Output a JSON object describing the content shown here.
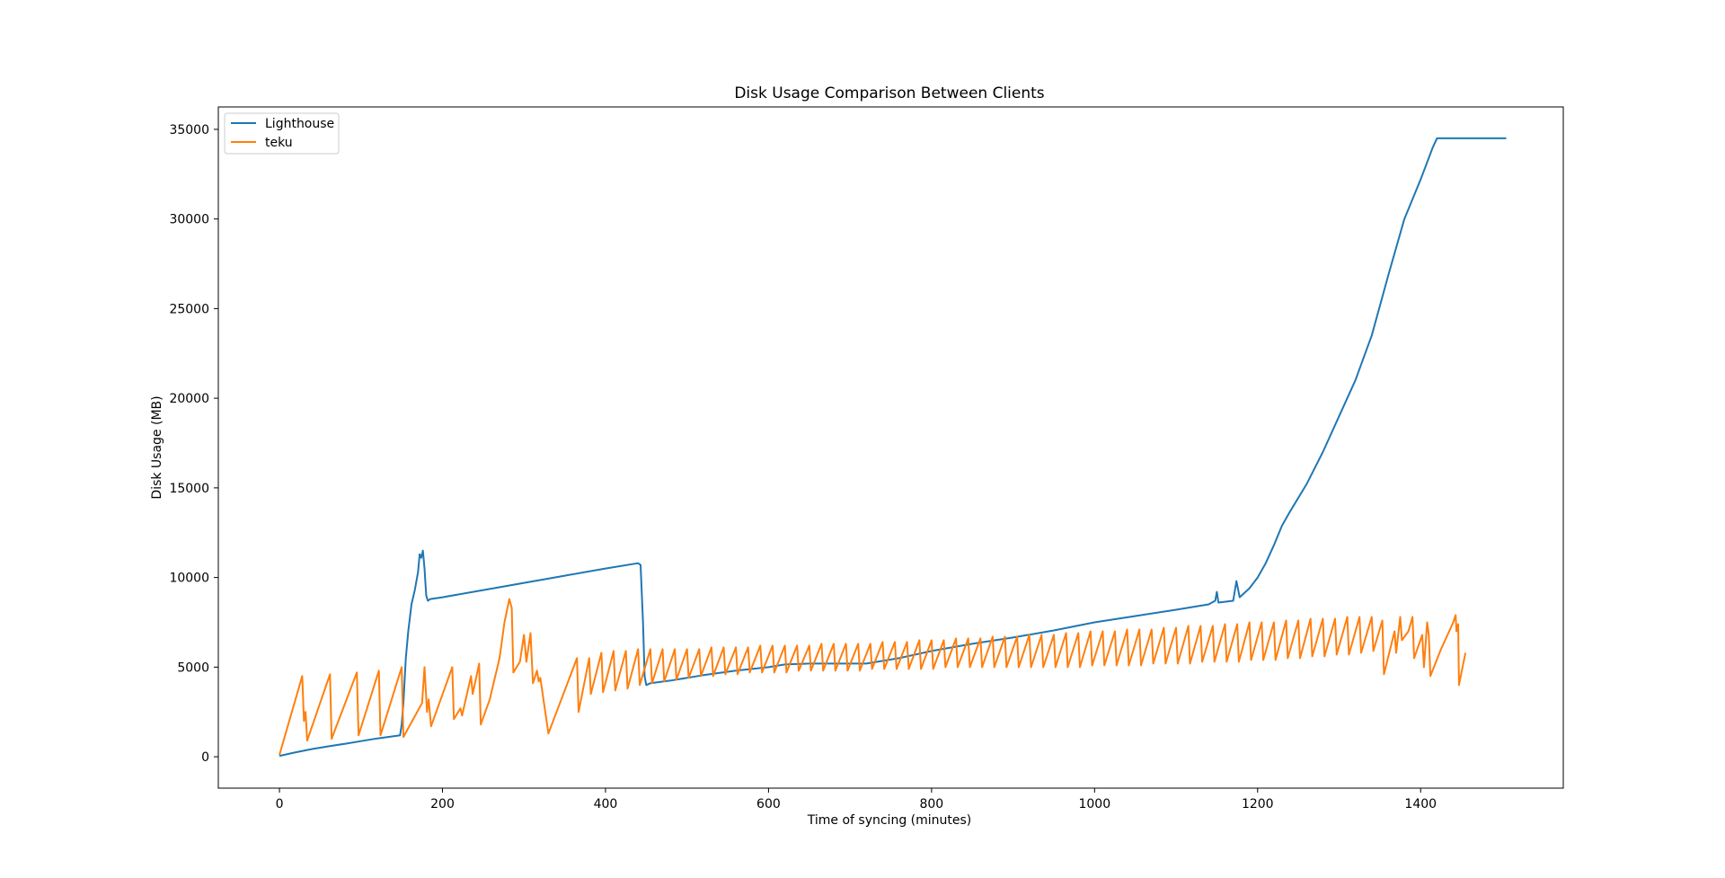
{
  "chart_data": {
    "type": "line",
    "title": "Disk Usage Comparison Between Clients",
    "xlabel": "Time of syncing (minutes)",
    "ylabel": "Disk Usage (MB)",
    "xlim": [
      -75,
      1575
    ],
    "ylim": [
      -1750,
      36250
    ],
    "x_ticks": [
      0,
      200,
      400,
      600,
      800,
      1000,
      1200,
      1400
    ],
    "y_ticks": [
      0,
      5000,
      10000,
      15000,
      20000,
      25000,
      30000,
      35000
    ],
    "grid": false,
    "legend_position": "top-left",
    "series": [
      {
        "name": "Lighthouse",
        "color": "#1f77b4",
        "points": [
          [
            0,
            50
          ],
          [
            20,
            250
          ],
          [
            40,
            430
          ],
          [
            60,
            580
          ],
          [
            80,
            720
          ],
          [
            100,
            870
          ],
          [
            120,
            1020
          ],
          [
            140,
            1150
          ],
          [
            148,
            1200
          ],
          [
            150,
            1800
          ],
          [
            152,
            3000
          ],
          [
            155,
            5500
          ],
          [
            158,
            7000
          ],
          [
            162,
            8500
          ],
          [
            166,
            9300
          ],
          [
            170,
            10300
          ],
          [
            172,
            11300
          ],
          [
            174,
            11100
          ],
          [
            176,
            11500
          ],
          [
            178,
            10500
          ],
          [
            180,
            9000
          ],
          [
            182,
            8700
          ],
          [
            185,
            8800
          ],
          [
            200,
            8900
          ],
          [
            250,
            9300
          ],
          [
            300,
            9700
          ],
          [
            350,
            10100
          ],
          [
            400,
            10500
          ],
          [
            440,
            10800
          ],
          [
            443,
            10700
          ],
          [
            446,
            7500
          ],
          [
            448,
            4500
          ],
          [
            450,
            4000
          ],
          [
            455,
            4100
          ],
          [
            480,
            4250
          ],
          [
            520,
            4550
          ],
          [
            560,
            4800
          ],
          [
            600,
            5000
          ],
          [
            620,
            5150
          ],
          [
            650,
            5200
          ],
          [
            700,
            5200
          ],
          [
            720,
            5200
          ],
          [
            760,
            5500
          ],
          [
            800,
            5900
          ],
          [
            850,
            6300
          ],
          [
            900,
            6650
          ],
          [
            950,
            7050
          ],
          [
            1000,
            7500
          ],
          [
            1050,
            7850
          ],
          [
            1100,
            8200
          ],
          [
            1140,
            8500
          ],
          [
            1148,
            8700
          ],
          [
            1150,
            9200
          ],
          [
            1152,
            8600
          ],
          [
            1170,
            8700
          ],
          [
            1174,
            9800
          ],
          [
            1178,
            8900
          ],
          [
            1190,
            9400
          ],
          [
            1200,
            10000
          ],
          [
            1210,
            10800
          ],
          [
            1220,
            11800
          ],
          [
            1230,
            12900
          ],
          [
            1240,
            13700
          ],
          [
            1260,
            15200
          ],
          [
            1280,
            17000
          ],
          [
            1300,
            19000
          ],
          [
            1320,
            21000
          ],
          [
            1340,
            23500
          ],
          [
            1360,
            26800
          ],
          [
            1380,
            30000
          ],
          [
            1400,
            32200
          ],
          [
            1415,
            34000
          ],
          [
            1420,
            34500
          ],
          [
            1440,
            34500
          ],
          [
            1470,
            34500
          ],
          [
            1505,
            34500
          ]
        ]
      },
      {
        "name": "teku",
        "color": "#ff7f0e",
        "points": [
          [
            0,
            100
          ],
          [
            28,
            4500
          ],
          [
            30,
            2000
          ],
          [
            32,
            2500
          ],
          [
            34,
            900
          ],
          [
            62,
            4600
          ],
          [
            64,
            1000
          ],
          [
            95,
            4700
          ],
          [
            97,
            1200
          ],
          [
            122,
            4800
          ],
          [
            124,
            1200
          ],
          [
            150,
            5000
          ],
          [
            152,
            1100
          ],
          [
            175,
            3000
          ],
          [
            178,
            5000
          ],
          [
            181,
            2500
          ],
          [
            183,
            3200
          ],
          [
            186,
            1700
          ],
          [
            212,
            5000
          ],
          [
            214,
            2100
          ],
          [
            222,
            2700
          ],
          [
            224,
            2300
          ],
          [
            235,
            4500
          ],
          [
            237,
            3500
          ],
          [
            245,
            5200
          ],
          [
            247,
            1800
          ],
          [
            258,
            3200
          ],
          [
            270,
            5500
          ],
          [
            276,
            7500
          ],
          [
            282,
            8800
          ],
          [
            285,
            8300
          ],
          [
            287,
            4700
          ],
          [
            295,
            5300
          ],
          [
            300,
            6800
          ],
          [
            303,
            5300
          ],
          [
            308,
            6900
          ],
          [
            311,
            4100
          ],
          [
            316,
            4800
          ],
          [
            318,
            4200
          ],
          [
            320,
            4400
          ],
          [
            330,
            1300
          ],
          [
            365,
            5500
          ],
          [
            367,
            2500
          ],
          [
            380,
            5500
          ],
          [
            382,
            3500
          ],
          [
            395,
            5800
          ],
          [
            397,
            3600
          ],
          [
            410,
            5900
          ],
          [
            412,
            3700
          ],
          [
            425,
            5900
          ],
          [
            427,
            3800
          ],
          [
            440,
            6000
          ],
          [
            442,
            4000
          ],
          [
            455,
            6000
          ],
          [
            457,
            4100
          ],
          [
            470,
            6000
          ],
          [
            472,
            4200
          ],
          [
            485,
            6000
          ],
          [
            487,
            4300
          ],
          [
            500,
            6000
          ],
          [
            502,
            4400
          ],
          [
            515,
            6000
          ],
          [
            517,
            4500
          ],
          [
            530,
            6100
          ],
          [
            532,
            4500
          ],
          [
            545,
            6100
          ],
          [
            547,
            4600
          ],
          [
            560,
            6100
          ],
          [
            562,
            4600
          ],
          [
            575,
            6100
          ],
          [
            577,
            4700
          ],
          [
            590,
            6200
          ],
          [
            592,
            4700
          ],
          [
            605,
            6200
          ],
          [
            607,
            4700
          ],
          [
            620,
            6200
          ],
          [
            622,
            4700
          ],
          [
            635,
            6200
          ],
          [
            637,
            4800
          ],
          [
            650,
            6200
          ],
          [
            652,
            4800
          ],
          [
            665,
            6300
          ],
          [
            667,
            4800
          ],
          [
            680,
            6300
          ],
          [
            682,
            4800
          ],
          [
            695,
            6300
          ],
          [
            697,
            4800
          ],
          [
            710,
            6300
          ],
          [
            712,
            4800
          ],
          [
            725,
            6300
          ],
          [
            727,
            4900
          ],
          [
            740,
            6400
          ],
          [
            742,
            4900
          ],
          [
            755,
            6400
          ],
          [
            757,
            4900
          ],
          [
            770,
            6400
          ],
          [
            772,
            4900
          ],
          [
            785,
            6500
          ],
          [
            787,
            4900
          ],
          [
            800,
            6500
          ],
          [
            802,
            4900
          ],
          [
            815,
            6500
          ],
          [
            817,
            5000
          ],
          [
            830,
            6600
          ],
          [
            832,
            5000
          ],
          [
            845,
            6600
          ],
          [
            847,
            5000
          ],
          [
            860,
            6600
          ],
          [
            862,
            5000
          ],
          [
            875,
            6700
          ],
          [
            877,
            5000
          ],
          [
            890,
            6700
          ],
          [
            892,
            5000
          ],
          [
            905,
            6700
          ],
          [
            907,
            5000
          ],
          [
            920,
            6800
          ],
          [
            922,
            5000
          ],
          [
            935,
            6800
          ],
          [
            937,
            5000
          ],
          [
            950,
            6800
          ],
          [
            952,
            5000
          ],
          [
            965,
            6900
          ],
          [
            967,
            5000
          ],
          [
            980,
            6900
          ],
          [
            982,
            5000
          ],
          [
            995,
            7000
          ],
          [
            997,
            5100
          ],
          [
            1010,
            7000
          ],
          [
            1012,
            5100
          ],
          [
            1025,
            7000
          ],
          [
            1027,
            5100
          ],
          [
            1040,
            7100
          ],
          [
            1042,
            5100
          ],
          [
            1055,
            7100
          ],
          [
            1057,
            5100
          ],
          [
            1070,
            7100
          ],
          [
            1072,
            5200
          ],
          [
            1085,
            7200
          ],
          [
            1087,
            5200
          ],
          [
            1100,
            7200
          ],
          [
            1102,
            5200
          ],
          [
            1115,
            7300
          ],
          [
            1117,
            5200
          ],
          [
            1130,
            7300
          ],
          [
            1132,
            5300
          ],
          [
            1145,
            7300
          ],
          [
            1147,
            5300
          ],
          [
            1160,
            7400
          ],
          [
            1162,
            5300
          ],
          [
            1175,
            7400
          ],
          [
            1177,
            5300
          ],
          [
            1190,
            7500
          ],
          [
            1192,
            5400
          ],
          [
            1205,
            7500
          ],
          [
            1207,
            5400
          ],
          [
            1220,
            7500
          ],
          [
            1222,
            5400
          ],
          [
            1235,
            7600
          ],
          [
            1237,
            5500
          ],
          [
            1250,
            7600
          ],
          [
            1252,
            5500
          ],
          [
            1265,
            7700
          ],
          [
            1267,
            5600
          ],
          [
            1280,
            7700
          ],
          [
            1282,
            5600
          ],
          [
            1295,
            7700
          ],
          [
            1297,
            5700
          ],
          [
            1310,
            7800
          ],
          [
            1312,
            5700
          ],
          [
            1325,
            7800
          ],
          [
            1327,
            5800
          ],
          [
            1340,
            7800
          ],
          [
            1342,
            5900
          ],
          [
            1353,
            7600
          ],
          [
            1355,
            4600
          ],
          [
            1368,
            7000
          ],
          [
            1370,
            5800
          ],
          [
            1375,
            7800
          ],
          [
            1377,
            6500
          ],
          [
            1385,
            7000
          ],
          [
            1390,
            7800
          ],
          [
            1392,
            5500
          ],
          [
            1402,
            6800
          ],
          [
            1404,
            5000
          ],
          [
            1408,
            7500
          ],
          [
            1410,
            6800
          ],
          [
            1412,
            4500
          ],
          [
            1425,
            6000
          ],
          [
            1435,
            7000
          ],
          [
            1440,
            7500
          ],
          [
            1443,
            7900
          ],
          [
            1444,
            7000
          ],
          [
            1446,
            7400
          ],
          [
            1447,
            4000
          ],
          [
            1455,
            5800
          ]
        ]
      }
    ]
  }
}
